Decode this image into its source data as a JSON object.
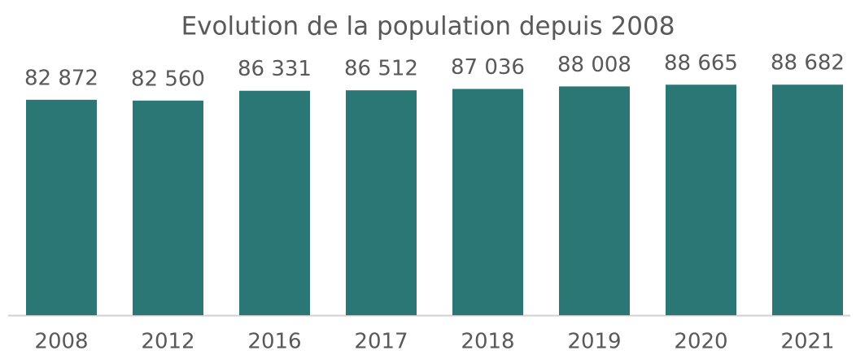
{
  "chart_data": {
    "type": "bar",
    "title": "Evolution de la population depuis 2008",
    "categories": [
      "2008",
      "2012",
      "2016",
      "2017",
      "2018",
      "2019",
      "2020",
      "2021"
    ],
    "values": [
      82872,
      82560,
      86331,
      86512,
      87036,
      88008,
      88665,
      88682
    ],
    "value_labels": [
      "82 872",
      "82 560",
      "86 331",
      "86 512",
      "87 036",
      "88 008",
      "88 665",
      "88 682"
    ],
    "color": "#2a7776",
    "ylim": [
      0,
      100000
    ]
  }
}
